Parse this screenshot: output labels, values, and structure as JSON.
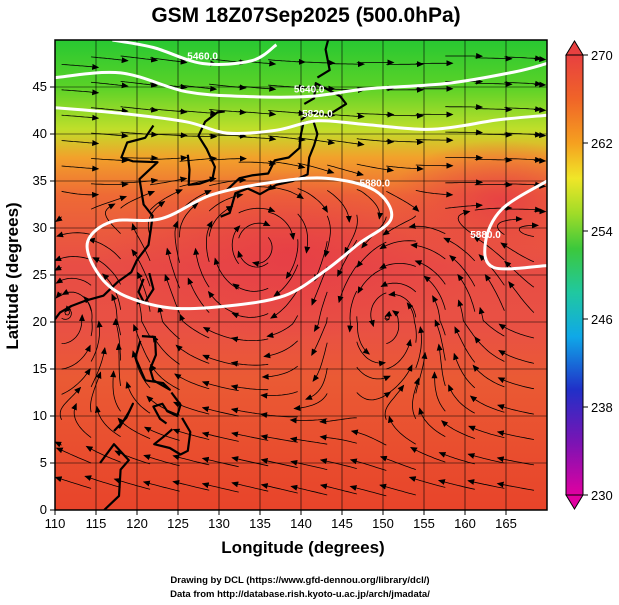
{
  "title": "GSM 18Z07Sep2025 (500.0hPa)",
  "xlabel": "Longitude (degrees)",
  "ylabel": "Latitude (degrees)",
  "credits": [
    "Drawing by DCL (https://www.gfd-dennou.org/library/dcl/)",
    "Data from http://database.rish.kyoto-u.ac.jp/arch/jmadata/"
  ],
  "chart_data": {
    "type": "heatmap",
    "title": "GSM 18Z07Sep2025 (500.0hPa)",
    "xlabel": "Longitude (degrees)",
    "ylabel": "Latitude (degrees)",
    "xlim": [
      110,
      170
    ],
    "ylim": [
      0,
      50
    ],
    "x_ticks": [
      "110",
      "115",
      "120",
      "125",
      "130",
      "135",
      "140",
      "145",
      "150",
      "155",
      "160",
      "165"
    ],
    "y_ticks": [
      "0",
      "5",
      "10",
      "15",
      "20",
      "25",
      "30",
      "35",
      "40",
      "45"
    ],
    "grid": true,
    "colorbar": {
      "range": [
        230,
        270
      ],
      "tick_labels": [
        "230",
        "238",
        "246",
        "254",
        "262",
        "270"
      ],
      "colors": [
        "#e000a0",
        "#7a14b4",
        "#2030c8",
        "#0fa8e8",
        "#20c8a0",
        "#3cc83c",
        "#a0dc28",
        "#f0e628",
        "#f5a020",
        "#f06428",
        "#e84040"
      ]
    },
    "contour_labels": [
      "5460.0",
      "5640.0",
      "5820.0",
      "5880.0",
      "5880.0"
    ],
    "contours": [
      {
        "label": "5460.0",
        "points": [
          [
            117,
            50
          ],
          [
            122,
            49.2
          ],
          [
            128,
            47.5
          ],
          [
            134,
            47.8
          ],
          [
            137,
            49.5
          ]
        ]
      },
      {
        "label": "5640.0",
        "points": [
          [
            110,
            46
          ],
          [
            118,
            46.5
          ],
          [
            126,
            44.5
          ],
          [
            133,
            44
          ],
          [
            141,
            44
          ],
          [
            148,
            44.8
          ],
          [
            158,
            45.4
          ],
          [
            166,
            46.6
          ],
          [
            170,
            47.5
          ]
        ]
      },
      {
        "label": "5820.0",
        "points": [
          [
            110,
            42.8
          ],
          [
            118,
            42.2
          ],
          [
            126,
            41.3
          ],
          [
            131,
            40.1
          ],
          [
            137,
            40.4
          ],
          [
            142,
            41.4
          ],
          [
            148,
            41
          ],
          [
            156,
            40.5
          ],
          [
            164,
            41.5
          ],
          [
            170,
            42
          ]
        ]
      },
      {
        "label": "5880.0",
        "closed": true,
        "points": [
          [
            123,
            31
          ],
          [
            129,
            33.5
          ],
          [
            136,
            34.8
          ],
          [
            143,
            35.3
          ],
          [
            149,
            34
          ],
          [
            151,
            31
          ],
          [
            147,
            28.3
          ],
          [
            143,
            25.5
          ],
          [
            138,
            22.8
          ],
          [
            131,
            21.7
          ],
          [
            124,
            21.5
          ],
          [
            118,
            23
          ],
          [
            115,
            25.5
          ],
          [
            114,
            28.6
          ],
          [
            117,
            30.7
          ]
        ]
      },
      {
        "label": "5880.0",
        "points": [
          [
            170,
            35
          ],
          [
            164.5,
            32
          ],
          [
            162.5,
            28.5
          ],
          [
            163.5,
            25.8
          ],
          [
            170,
            26
          ]
        ]
      }
    ],
    "streamline_centers": [
      {
        "kind": "anticyclone",
        "lon": 135,
        "lat": 28
      },
      {
        "kind": "cyclone",
        "lon": 150.5,
        "lat": 20.5
      },
      {
        "kind": "cyclone",
        "lon": 111.5,
        "lat": 21
      }
    ],
    "coastlines": [
      "Japan",
      "Korea",
      "China",
      "Taiwan",
      "Philippines",
      "Borneo",
      "Sakhalin"
    ]
  }
}
